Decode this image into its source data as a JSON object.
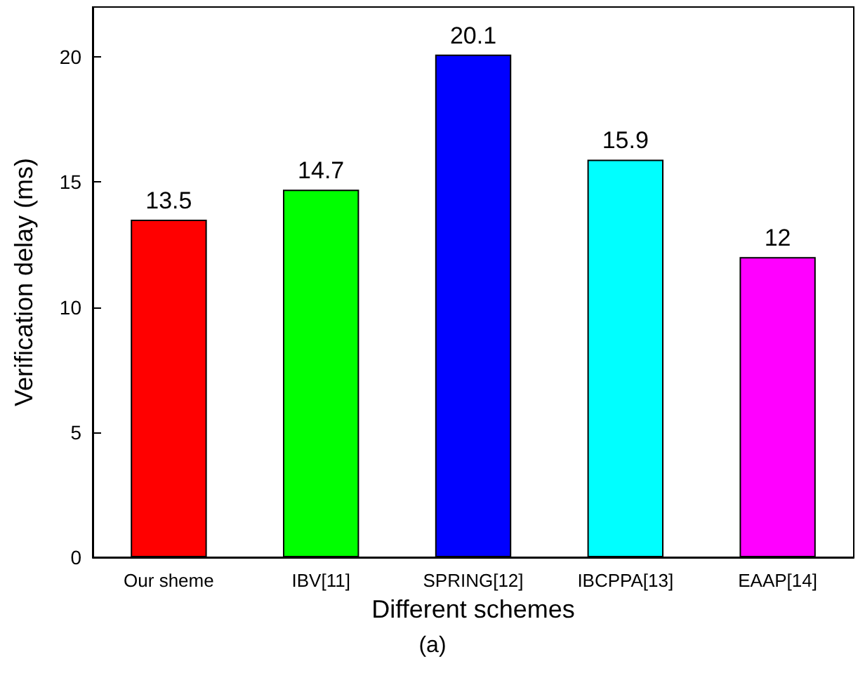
{
  "chart_data": {
    "type": "bar",
    "xlabel": "Different schemes",
    "ylabel": "Verification delay (ms)",
    "categories": [
      "Our sheme",
      "IBV[11]",
      "SPRING[12]",
      "IBCPPA[13]",
      "EAAP[14]"
    ],
    "values": [
      13.5,
      14.7,
      20.1,
      15.9,
      12
    ],
    "colors": [
      "#ff0000",
      "#00ff00",
      "#0000ff",
      "#00ffff",
      "#ff00ff"
    ],
    "ylim": [
      0,
      22
    ],
    "yticks": [
      0,
      5,
      10,
      15,
      20
    ],
    "grid": false,
    "data_labels": true,
    "annotations": [
      "(a)"
    ]
  }
}
